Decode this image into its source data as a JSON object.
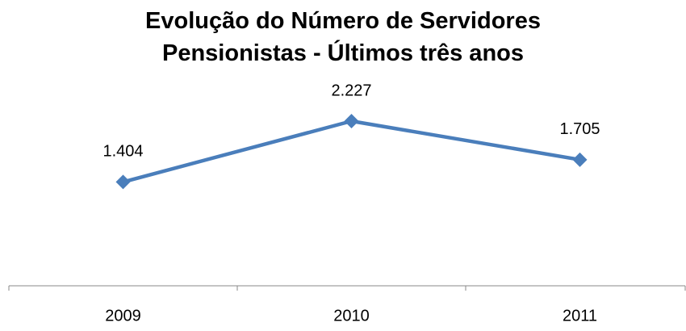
{
  "chart_data": {
    "type": "line",
    "title": "Evolução do Número de Servidores Pensionistas - Últimos três anos",
    "categories": [
      "2009",
      "2010",
      "2011"
    ],
    "series": [
      {
        "name": "Pensionistas",
        "color": "#4a7ebb",
        "values": [
          1404,
          2227,
          1705
        ],
        "value_labels": [
          "1.404",
          "2.227",
          "1.705"
        ]
      }
    ],
    "ylim": [
      0,
      2500
    ]
  }
}
